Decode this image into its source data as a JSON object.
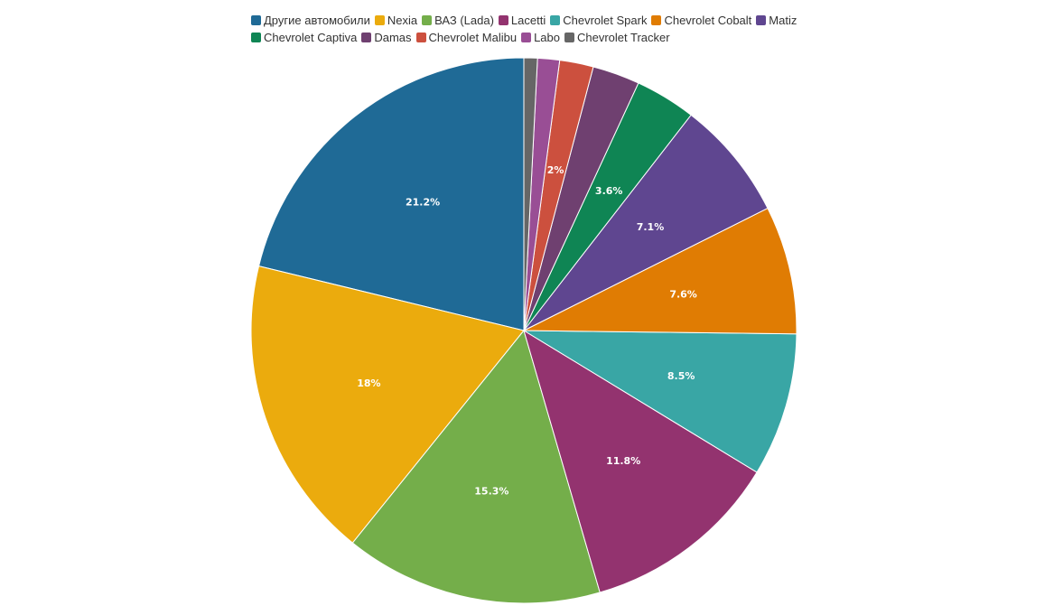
{
  "chart_data": {
    "type": "pie",
    "series": [
      {
        "name": "Другие автомобили",
        "value": 21.2,
        "label": "21.2%",
        "color": "#1f6a96"
      },
      {
        "name": "Nexia",
        "value": 18.0,
        "label": "18%",
        "color": "#ebab0d"
      },
      {
        "name": "ВАЗ (Lada)",
        "value": 15.3,
        "label": "15.3%",
        "color": "#74ae4a"
      },
      {
        "name": "Lacetti",
        "value": 11.8,
        "label": "11.8%",
        "color": "#93336f"
      },
      {
        "name": "Chevrolet Spark",
        "value": 8.5,
        "label": "8.5%",
        "color": "#39a6a5"
      },
      {
        "name": "Chevrolet Cobalt",
        "value": 7.6,
        "label": "7.6%",
        "color": "#e07c03"
      },
      {
        "name": "Matiz",
        "value": 7.1,
        "label": "7.1%",
        "color": "#5f4690"
      },
      {
        "name": "Chevrolet Captiva",
        "value": 3.6,
        "label": "3.6%",
        "color": "#0f8554"
      },
      {
        "name": "Damas",
        "value": 2.8,
        "label": "",
        "color": "#6f4070"
      },
      {
        "name": "Chevrolet Malibu",
        "value": 2.0,
        "label": "2%",
        "color": "#cc503e"
      },
      {
        "name": "Labo",
        "value": 1.3,
        "label": "",
        "color": "#994e95"
      },
      {
        "name": "Chevrolet Tracker",
        "value": 0.8,
        "label": "",
        "color": "#666666"
      }
    ],
    "legend_position": "top-center"
  }
}
